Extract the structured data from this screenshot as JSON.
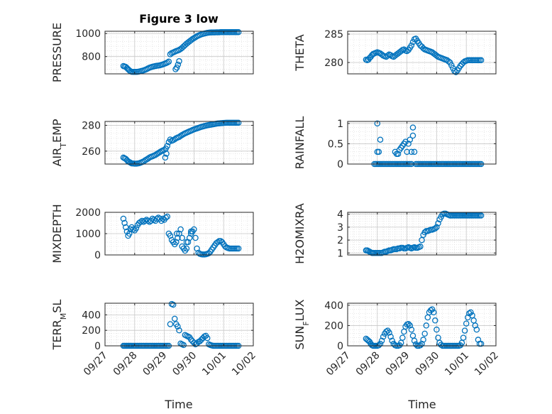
{
  "figure": {
    "title": "Figure 3 low",
    "xlabel": "Time",
    "x_ticks": [
      "09/27",
      "09/28",
      "09/29",
      "09/30",
      "10/01",
      "10/02"
    ],
    "marker_color": "#0072BD",
    "axis_color": "#262626",
    "grid_color": "#d9d9d9"
  },
  "chart_data": [
    {
      "type": "scatter",
      "ylabel": "PRESSURE",
      "ylabel_sub": "",
      "ylabel_tail": "",
      "ylim": [
        650,
        1020
      ],
      "yticks": [
        800,
        1000
      ],
      "x": [
        0.62,
        0.66,
        0.7,
        0.74,
        0.78,
        0.82,
        0.86,
        0.9,
        0.95,
        1.0,
        1.05,
        1.1,
        1.15,
        1.2,
        1.25,
        1.3,
        1.35,
        1.4,
        1.45,
        1.5,
        1.55,
        1.6,
        1.65,
        1.7,
        1.75,
        1.8,
        1.85,
        1.9,
        1.95,
        2.0,
        2.05,
        2.1,
        2.15,
        2.2,
        2.25,
        2.3,
        2.35,
        2.4,
        2.45,
        2.5,
        2.55,
        2.6,
        2.65,
        2.7,
        2.75,
        2.8,
        2.85,
        2.9,
        2.95,
        3.0,
        3.05,
        3.1,
        3.15,
        3.2,
        3.25,
        3.3,
        3.35,
        3.4,
        3.45,
        3.5,
        3.55,
        3.6,
        3.65,
        3.7,
        3.75,
        3.8,
        3.85,
        3.9,
        3.95,
        4.0,
        4.05,
        4.1,
        4.15,
        4.2,
        4.25,
        4.3,
        4.35,
        4.4,
        4.45,
        4.5,
        2.38,
        2.42,
        2.46,
        2.5
      ],
      "y": [
        718,
        714,
        710,
        700,
        690,
        680,
        672,
        668,
        667,
        667,
        667,
        668,
        670,
        673,
        676,
        680,
        685,
        690,
        697,
        703,
        708,
        712,
        715,
        718,
        720,
        722,
        724,
        728,
        732,
        737,
        742,
        748,
        756,
        820,
        830,
        836,
        842,
        848,
        852,
        858,
        866,
        876,
        888,
        900,
        912,
        922,
        932,
        942,
        952,
        960,
        968,
        976,
        982,
        988,
        993,
        997,
        1000,
        1003,
        1006,
        1008,
        1009,
        1010,
        1010,
        1010,
        1011,
        1011,
        1011,
        1012,
        1012,
        1012,
        1012,
        1012,
        1012,
        1012,
        1012,
        1012,
        1012,
        1012,
        1012,
        1012,
        690,
        705,
        730,
        760
      ]
    },
    {
      "type": "scatter",
      "ylabel": "THETA",
      "ylabel_sub": "",
      "ylabel_tail": "",
      "ylim": [
        278,
        285.5
      ],
      "yticks": [
        280,
        285
      ],
      "x": [
        0.62,
        0.66,
        0.7,
        0.74,
        0.78,
        0.82,
        0.86,
        0.9,
        0.95,
        1.0,
        1.05,
        1.1,
        1.15,
        1.2,
        1.25,
        1.3,
        1.35,
        1.4,
        1.45,
        1.5,
        1.55,
        1.6,
        1.65,
        1.7,
        1.75,
        1.8,
        1.85,
        1.9,
        1.95,
        2.0,
        2.05,
        2.1,
        2.15,
        2.2,
        2.25,
        2.3,
        2.35,
        2.4,
        2.45,
        2.5,
        2.55,
        2.6,
        2.65,
        2.7,
        2.75,
        2.8,
        2.85,
        2.9,
        2.95,
        3.0,
        3.05,
        3.1,
        3.15,
        3.2,
        3.25,
        3.3,
        3.35,
        3.4,
        3.45,
        3.5,
        3.55,
        3.6,
        3.65,
        3.7,
        3.75,
        3.8,
        3.85,
        3.9,
        3.95,
        4.0,
        4.05,
        4.1,
        4.15,
        4.2,
        4.25,
        4.3,
        4.35,
        4.4,
        4.45,
        4.5
      ],
      "y": [
        280.5,
        280.4,
        280.5,
        280.8,
        281.0,
        281.3,
        281.5,
        281.6,
        281.7,
        281.8,
        281.7,
        281.6,
        281.4,
        281.2,
        281.1,
        281.0,
        281.2,
        281.4,
        281.3,
        281.1,
        281.0,
        281.2,
        281.4,
        281.6,
        281.8,
        282.0,
        282.2,
        282.3,
        282.1,
        282.0,
        282.2,
        282.6,
        283.0,
        283.6,
        284.1,
        284.2,
        283.8,
        283.4,
        283.0,
        282.8,
        282.5,
        282.3,
        282.2,
        282.1,
        282.0,
        281.9,
        281.8,
        281.6,
        281.4,
        281.2,
        281.0,
        280.9,
        280.8,
        280.7,
        280.6,
        280.5,
        280.4,
        280.2,
        280.0,
        279.5,
        279.0,
        278.5,
        278.3,
        278.6,
        279.0,
        279.4,
        279.7,
        280.0,
        280.2,
        280.3,
        280.4,
        280.4,
        280.4,
        280.4,
        280.4,
        280.4,
        280.4,
        280.4,
        280.4,
        280.4
      ]
    },
    {
      "type": "scatter",
      "ylabel": "AIR",
      "ylabel_sub": "T",
      "ylabel_tail": "EMP",
      "ylim": [
        250,
        283
      ],
      "yticks": [
        260,
        280
      ],
      "x": [
        0.62,
        0.66,
        0.7,
        0.74,
        0.78,
        0.82,
        0.86,
        0.9,
        0.95,
        1.0,
        1.05,
        1.1,
        1.15,
        1.2,
        1.25,
        1.3,
        1.35,
        1.4,
        1.45,
        1.5,
        1.55,
        1.6,
        1.65,
        1.7,
        1.75,
        1.8,
        1.85,
        1.9,
        1.95,
        2.0,
        2.05,
        2.1,
        2.15,
        2.2,
        2.25,
        2.3,
        2.35,
        2.4,
        2.45,
        2.5,
        2.55,
        2.6,
        2.65,
        2.7,
        2.75,
        2.8,
        2.85,
        2.9,
        2.95,
        3.0,
        3.05,
        3.1,
        3.15,
        3.2,
        3.25,
        3.3,
        3.35,
        3.4,
        3.45,
        3.5,
        3.55,
        3.6,
        3.65,
        3.7,
        3.75,
        3.8,
        3.85,
        3.9,
        3.95,
        4.0,
        4.05,
        4.1,
        4.15,
        4.2,
        4.25,
        4.3,
        4.35,
        4.4,
        4.45,
        4.5,
        2.03,
        2.07
      ],
      "y": [
        255,
        254.5,
        254,
        253,
        252,
        251.5,
        251,
        250.5,
        250.4,
        250.3,
        250.3,
        250.4,
        250.6,
        251,
        251.5,
        252,
        252.8,
        253.5,
        254.2,
        255,
        255.6,
        256,
        256.5,
        257,
        257.8,
        258.5,
        259.2,
        260,
        260.5,
        261,
        262,
        264,
        267,
        269,
        268,
        268.5,
        269.2,
        270,
        270.5,
        271,
        271.8,
        272.5,
        273.2,
        273.8,
        274.3,
        274.8,
        275.3,
        275.8,
        276.3,
        276.8,
        277.2,
        277.6,
        278,
        278.4,
        278.8,
        279.1,
        279.4,
        279.7,
        280,
        280.2,
        280.4,
        280.6,
        280.8,
        281,
        281.2,
        281.4,
        281.5,
        281.6,
        281.7,
        281.8,
        281.9,
        282,
        282,
        282,
        282,
        282,
        282,
        282,
        282,
        282,
        255,
        258
      ]
    },
    {
      "type": "scatter",
      "ylabel": "RAINFALL",
      "ylabel_sub": "",
      "ylabel_tail": "",
      "ylim": [
        0,
        1.05
      ],
      "yticks": [
        0,
        0.5,
        1
      ],
      "x": [
        0.9,
        0.95,
        1.0,
        1.05,
        1.1,
        1.15,
        1.2,
        1.0,
        1.05,
        1.0,
        1.1,
        1.25,
        1.3,
        1.35,
        1.4,
        1.45,
        1.5,
        1.55,
        1.6,
        1.65,
        1.7,
        1.75,
        1.8,
        1.85,
        1.9,
        1.95,
        2.0,
        2.05,
        2.1,
        2.15,
        1.7,
        1.75,
        1.8,
        1.85,
        1.9,
        1.95,
        2.0,
        2.05,
        1.6,
        1.65,
        2.15,
        2.2,
        2.25,
        2.2,
        2.1,
        2.3,
        2.35,
        2.4,
        2.45,
        2.5,
        2.55,
        2.6,
        2.65,
        2.7,
        2.75,
        2.8,
        2.85,
        2.9,
        2.95,
        3.0,
        3.05,
        3.1,
        3.15,
        3.2,
        3.25,
        3.3,
        3.35,
        3.4,
        3.45,
        3.5,
        3.55,
        3.6,
        3.65,
        3.7,
        3.75,
        3.8,
        3.85,
        3.9,
        3.95,
        4.0,
        4.05,
        4.1,
        4.15,
        4.2,
        4.25,
        4.3,
        4.35,
        4.4,
        4.45,
        4.5
      ],
      "y": [
        0,
        0,
        0,
        0,
        0,
        0,
        0,
        0.3,
        0.3,
        1.0,
        0.6,
        0,
        0,
        0,
        0,
        0,
        0,
        0,
        0,
        0,
        0,
        0,
        0,
        0,
        0,
        0,
        0,
        0,
        0,
        0,
        0.25,
        0.35,
        0.4,
        0.45,
        0.5,
        0.55,
        0.3,
        0.5,
        0.3,
        0.25,
        0.3,
        0.9,
        0.3,
        0.7,
        0.6,
        0,
        0,
        0,
        0,
        0,
        0,
        0,
        0,
        0,
        0,
        0,
        0,
        0,
        0,
        0,
        0,
        0,
        0,
        0,
        0,
        0,
        0,
        0,
        0,
        0,
        0,
        0,
        0,
        0,
        0,
        0,
        0,
        0,
        0,
        0,
        0,
        0,
        0,
        0,
        0,
        0,
        0,
        0,
        0,
        0
      ]
    },
    {
      "type": "scatter",
      "ylabel": "MIXDEPTH",
      "ylabel_sub": "",
      "ylabel_tail": "",
      "ylim": [
        0,
        2000
      ],
      "yticks": [
        0,
        1000,
        2000
      ],
      "x": [
        0.62,
        0.66,
        0.7,
        0.74,
        0.78,
        0.82,
        0.86,
        0.9,
        0.95,
        1.0,
        1.05,
        1.1,
        1.15,
        1.2,
        1.25,
        1.3,
        1.35,
        1.4,
        1.45,
        1.5,
        1.55,
        1.6,
        1.65,
        1.7,
        1.75,
        1.8,
        1.85,
        1.9,
        1.95,
        2.0,
        2.05,
        2.1,
        2.15,
        2.2,
        2.25,
        2.3,
        2.35,
        2.4,
        2.45,
        2.5,
        2.55,
        2.6,
        2.65,
        2.7,
        2.75,
        2.8,
        2.85,
        2.9,
        2.95,
        3.0,
        3.05,
        3.1,
        3.15,
        3.2,
        3.25,
        3.3,
        3.35,
        3.4,
        3.45,
        3.5,
        3.55,
        3.6,
        3.65,
        3.7,
        3.75,
        3.8,
        3.85,
        3.9,
        3.95,
        4.0,
        4.05,
        4.1,
        4.15,
        4.2,
        4.25,
        4.3,
        4.35,
        4.4,
        4.45,
        4.5,
        2.42,
        2.6,
        2.75,
        2.9
      ],
      "y": [
        1700,
        1500,
        1300,
        1100,
        900,
        1000,
        1200,
        1300,
        1200,
        1150,
        1250,
        1400,
        1500,
        1550,
        1600,
        1550,
        1600,
        1650,
        1600,
        1550,
        1600,
        1700,
        1650,
        1600,
        1700,
        1750,
        1700,
        1600,
        1700,
        1650,
        1750,
        1800,
        1000,
        900,
        700,
        600,
        500,
        600,
        800,
        1000,
        1200,
        400,
        300,
        200,
        300,
        600,
        800,
        1000,
        1100,
        1200,
        800,
        300,
        100,
        50,
        30,
        20,
        20,
        30,
        50,
        80,
        150,
        250,
        350,
        450,
        550,
        600,
        650,
        650,
        600,
        500,
        400,
        350,
        320,
        300,
        300,
        300,
        300,
        300,
        300,
        300,
        1000,
        800,
        600,
        1100
      ]
    },
    {
      "type": "scatter",
      "ylabel": "H2OMIXRA",
      "ylabel_sub": "",
      "ylabel_tail": "",
      "ylim": [
        0.85,
        4.15
      ],
      "yticks": [
        1,
        2,
        3,
        4
      ],
      "x": [
        0.62,
        0.66,
        0.7,
        0.74,
        0.78,
        0.82,
        0.86,
        0.9,
        0.95,
        1.0,
        1.05,
        1.1,
        1.15,
        1.2,
        1.25,
        1.3,
        1.35,
        1.4,
        1.45,
        1.5,
        1.55,
        1.6,
        1.65,
        1.7,
        1.75,
        1.8,
        1.85,
        1.9,
        1.95,
        2.0,
        2.05,
        2.1,
        2.15,
        2.2,
        2.25,
        2.3,
        2.35,
        2.4,
        2.45,
        2.5,
        2.55,
        2.6,
        2.65,
        2.7,
        2.75,
        2.8,
        2.85,
        2.9,
        2.95,
        3.0,
        3.05,
        3.1,
        3.15,
        3.2,
        3.25,
        3.3,
        3.35,
        3.4,
        3.45,
        3.5,
        3.55,
        3.6,
        3.65,
        3.7,
        3.75,
        3.8,
        3.85,
        3.9,
        3.95,
        4.0,
        4.05,
        4.1,
        4.15,
        4.2,
        4.25,
        4.3,
        4.35,
        4.4,
        4.45,
        4.5
      ],
      "y": [
        1.2,
        1.2,
        1.15,
        1.1,
        1.05,
        1.0,
        1.0,
        1.0,
        1.0,
        1.0,
        1.0,
        1.0,
        1.0,
        1.05,
        1.1,
        1.1,
        1.15,
        1.2,
        1.2,
        1.25,
        1.3,
        1.3,
        1.3,
        1.35,
        1.35,
        1.4,
        1.4,
        1.35,
        1.35,
        1.4,
        1.45,
        1.4,
        1.35,
        1.4,
        1.45,
        1.4,
        1.4,
        1.45,
        1.5,
        2.0,
        2.4,
        2.6,
        2.7,
        2.7,
        2.75,
        2.8,
        2.8,
        2.85,
        2.9,
        3.0,
        3.3,
        3.6,
        3.8,
        4.0,
        4.05,
        4.05,
        4.0,
        3.95,
        3.9,
        3.9,
        3.9,
        3.9,
        3.9,
        3.9,
        3.9,
        3.9,
        3.9,
        3.9,
        3.9,
        3.9,
        3.9,
        3.9,
        3.9,
        3.9,
        3.9,
        3.9,
        3.9,
        3.9,
        3.9,
        3.9
      ]
    },
    {
      "type": "scatter",
      "ylabel": "TERR",
      "ylabel_sub": "M",
      "ylabel_tail": "SL",
      "ylim": [
        0,
        550
      ],
      "yticks": [
        0,
        200,
        400
      ],
      "x": [
        0.62,
        0.66,
        0.7,
        0.74,
        0.78,
        0.82,
        0.86,
        0.9,
        0.95,
        1.0,
        1.05,
        1.1,
        1.15,
        1.2,
        1.25,
        1.3,
        1.35,
        1.4,
        1.45,
        1.5,
        1.55,
        1.6,
        1.65,
        1.7,
        1.75,
        1.8,
        1.85,
        1.9,
        1.95,
        2.0,
        2.05,
        2.1,
        2.15,
        2.2,
        2.25,
        2.3,
        2.35,
        2.4,
        2.45,
        2.5,
        2.55,
        2.6,
        2.65,
        2.7,
        2.75,
        2.8,
        2.85,
        2.9,
        2.95,
        3.0,
        3.05,
        3.1,
        3.15,
        3.2,
        3.25,
        3.3,
        3.35,
        3.4,
        3.45,
        3.5,
        3.55,
        3.6,
        3.65,
        3.7,
        3.75,
        3.8,
        3.85,
        3.9,
        3.95,
        4.0,
        4.05,
        4.1,
        4.15,
        4.2,
        4.25,
        4.3,
        4.35,
        4.4,
        4.45,
        4.5
      ],
      "y": [
        0,
        0,
        0,
        0,
        0,
        0,
        0,
        0,
        0,
        0,
        0,
        0,
        0,
        0,
        0,
        0,
        0,
        0,
        0,
        0,
        0,
        0,
        0,
        0,
        0,
        0,
        0,
        0,
        0,
        0,
        0,
        0,
        0,
        280,
        540,
        530,
        350,
        280,
        250,
        200,
        30,
        20,
        10,
        140,
        130,
        120,
        110,
        80,
        60,
        40,
        20,
        30,
        50,
        60,
        80,
        100,
        120,
        130,
        100,
        20,
        10,
        5,
        0,
        0,
        0,
        0,
        0,
        0,
        0,
        0,
        0,
        0,
        0,
        0,
        0,
        0,
        0,
        0,
        0,
        0
      ]
    },
    {
      "type": "scatter",
      "ylabel": "SUN",
      "ylabel_sub": "F",
      "ylabel_tail": "LUX",
      "ylim": [
        0,
        420
      ],
      "yticks": [
        0,
        200,
        400
      ],
      "x": [
        0.62,
        0.66,
        0.7,
        0.74,
        0.78,
        0.82,
        0.86,
        0.9,
        0.95,
        1.0,
        1.05,
        1.1,
        1.15,
        1.2,
        1.25,
        1.3,
        1.35,
        1.4,
        1.45,
        1.5,
        1.55,
        1.6,
        1.65,
        1.7,
        1.75,
        1.8,
        1.85,
        1.9,
        1.95,
        2.0,
        2.05,
        2.1,
        2.15,
        2.2,
        2.25,
        2.3,
        2.35,
        2.4,
        2.45,
        2.5,
        2.55,
        2.6,
        2.65,
        2.7,
        2.75,
        2.8,
        2.85,
        2.9,
        2.95,
        3.0,
        3.05,
        3.1,
        3.15,
        3.2,
        3.25,
        3.3,
        3.35,
        3.4,
        3.45,
        3.5,
        3.55,
        3.6,
        3.65,
        3.7,
        3.75,
        3.8,
        3.85,
        3.9,
        3.95,
        4.0,
        4.05,
        4.1,
        4.15,
        4.2,
        4.25,
        4.3,
        4.35,
        4.4,
        4.45,
        4.5
      ],
      "y": [
        70,
        60,
        50,
        40,
        20,
        5,
        0,
        0,
        0,
        0,
        5,
        20,
        50,
        90,
        120,
        140,
        150,
        130,
        90,
        50,
        20,
        5,
        0,
        0,
        5,
        30,
        80,
        140,
        190,
        210,
        215,
        200,
        160,
        100,
        50,
        15,
        0,
        0,
        5,
        20,
        60,
        120,
        200,
        280,
        330,
        350,
        360,
        330,
        250,
        160,
        80,
        30,
        10,
        0,
        0,
        0,
        0,
        0,
        0,
        0,
        0,
        0,
        0,
        0,
        0,
        5,
        30,
        80,
        150,
        220,
        280,
        320,
        330,
        300,
        250,
        200,
        160,
        60,
        20,
        20
      ]
    }
  ]
}
